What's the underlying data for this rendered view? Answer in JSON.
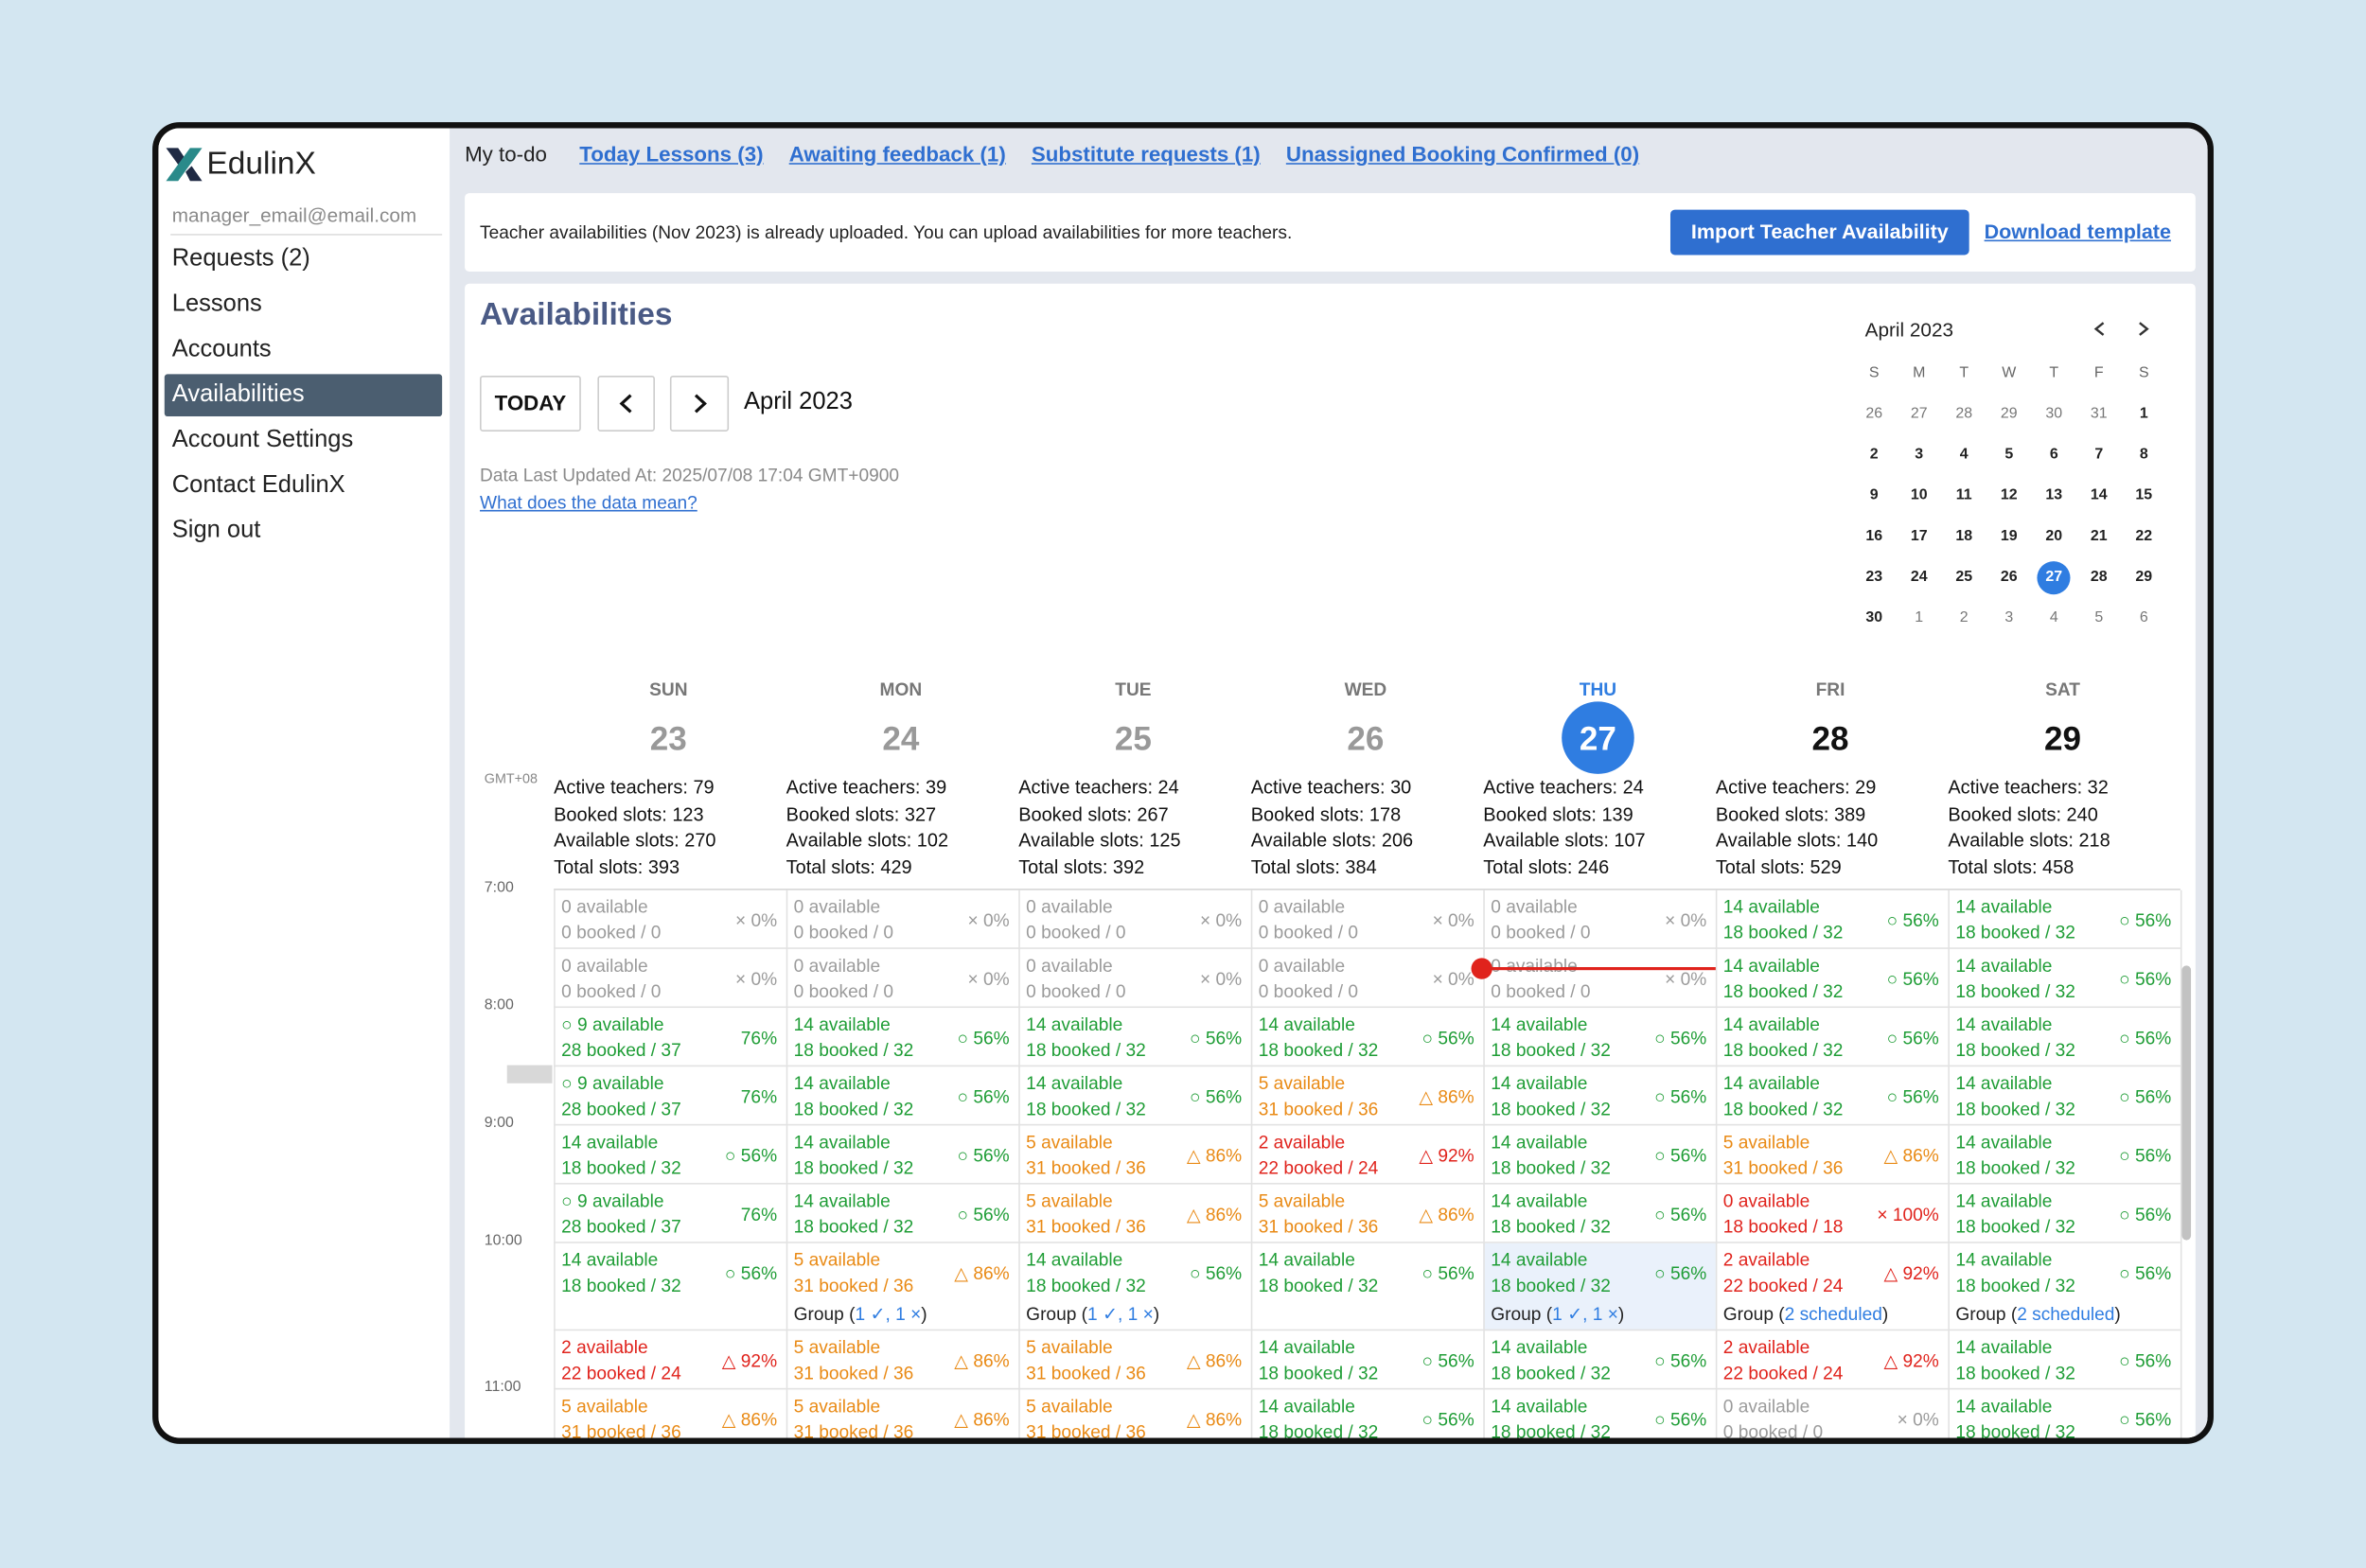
{
  "sidebar": {
    "logo": "EdulinX",
    "email": "manager_email@email.com",
    "menu": [
      "Requests (2)",
      "Lessons",
      "Accounts",
      "Availabilities",
      "Account Settings",
      "Contact EdulinX",
      "Sign out"
    ],
    "active": 3
  },
  "topbar": {
    "label": "My to-do",
    "links": [
      "Today Lessons (3)",
      "Awaiting feedback (1)",
      "Substitute requests (1)",
      "Unassigned Booking Confirmed (0)"
    ]
  },
  "banner": {
    "text": "Teacher availabilities (Nov 2023) is already uploaded. You can upload availabilities for more teachers.",
    "button": "Import Teacher Availability",
    "link": "Download template"
  },
  "header": {
    "title": "Availabilities",
    "today": "TODAY",
    "month": "April 2023",
    "updated": "Data Last Updated At: 2025/07/08 17:04 GMT+0900",
    "help": "What does the data mean?"
  },
  "mini_calendar": {
    "title": "April 2023",
    "weekdays": [
      "S",
      "M",
      "T",
      "W",
      "T",
      "F",
      "S"
    ],
    "weeks": [
      [
        "26",
        "27",
        "28",
        "29",
        "30",
        "31",
        "1"
      ],
      [
        "2",
        "3",
        "4",
        "5",
        "6",
        "7",
        "8"
      ],
      [
        "9",
        "10",
        "11",
        "12",
        "13",
        "14",
        "15"
      ],
      [
        "16",
        "17",
        "18",
        "19",
        "20",
        "21",
        "22"
      ],
      [
        "23",
        "24",
        "25",
        "26",
        "27",
        "28",
        "29"
      ],
      [
        "30",
        "1",
        "2",
        "3",
        "4",
        "5",
        "6"
      ]
    ],
    "selected": "27"
  },
  "week": {
    "timezone": "GMT+08",
    "days": [
      {
        "name": "SUN",
        "date": "23",
        "state": "past",
        "stats": [
          "Active teachers: 79",
          "Booked slots: 123",
          "Available slots: 270",
          "Total slots: 393"
        ]
      },
      {
        "name": "MON",
        "date": "24",
        "state": "past",
        "stats": [
          "Active teachers: 39",
          "Booked slots: 327",
          "Available slots: 102",
          "Total slots: 429"
        ]
      },
      {
        "name": "TUE",
        "date": "25",
        "state": "past",
        "stats": [
          "Active teachers: 24",
          "Booked slots: 267",
          "Available slots: 125",
          "Total slots: 392"
        ]
      },
      {
        "name": "WED",
        "date": "26",
        "state": "past",
        "stats": [
          "Active teachers: 30",
          "Booked slots: 178",
          "Available slots: 206",
          "Total slots: 384"
        ]
      },
      {
        "name": "THU",
        "date": "27",
        "state": "today",
        "stats": [
          "Active teachers: 24",
          "Booked slots: 139",
          "Available slots: 107",
          "Total slots: 246"
        ]
      },
      {
        "name": "FRI",
        "date": "28",
        "state": "future",
        "stats": [
          "Active teachers: 29",
          "Booked slots: 389",
          "Available slots: 140",
          "Total slots: 529"
        ]
      },
      {
        "name": "SAT",
        "date": "29",
        "state": "future",
        "stats": [
          "Active teachers: 32",
          "Booked slots: 240",
          "Available slots: 218",
          "Total slots: 458"
        ]
      }
    ],
    "rows": [
      {
        "time": "7:00",
        "cells": [
          {
            "a": "0 available",
            "b": "0 booked / 0",
            "r": "× 0%",
            "color": "#9b9b9b"
          },
          {
            "a": "0 available",
            "b": "0 booked / 0",
            "r": "× 0%",
            "color": "#9b9b9b"
          },
          {
            "a": "0 available",
            "b": "0 booked / 0",
            "r": "× 0%",
            "color": "#9b9b9b"
          },
          {
            "a": "0 available",
            "b": "0 booked / 0",
            "r": "× 0%",
            "color": "#9b9b9b"
          },
          {
            "a": "0 available",
            "b": "0 booked / 0",
            "r": "× 0%",
            "color": "#9b9b9b"
          },
          {
            "a": "14 available",
            "b": "18 booked / 32",
            "r": "○ 56%",
            "color": "#1f9d36"
          },
          {
            "a": "14 available",
            "b": "18 booked / 32",
            "r": "○ 56%",
            "color": "#1f9d36"
          }
        ]
      },
      {
        "time": null,
        "cells": [
          {
            "a": "0 available",
            "b": "0 booked / 0",
            "r": "× 0%",
            "color": "#9b9b9b"
          },
          {
            "a": "0 available",
            "b": "0 booked / 0",
            "r": "× 0%",
            "color": "#9b9b9b"
          },
          {
            "a": "0 available",
            "b": "0 booked / 0",
            "r": "× 0%",
            "color": "#9b9b9b"
          },
          {
            "a": "0 available",
            "b": "0 booked / 0",
            "r": "× 0%",
            "color": "#9b9b9b"
          },
          {
            "a": "0 available",
            "b": "0 booked / 0",
            "r": "× 0%",
            "color": "#9b9b9b"
          },
          {
            "a": "14 available",
            "b": "18 booked / 32",
            "r": "○ 56%",
            "color": "#1f9d36"
          },
          {
            "a": "14 available",
            "b": "18 booked / 32",
            "r": "○ 56%",
            "color": "#1f9d36"
          }
        ]
      },
      {
        "time": "8:00",
        "cells": [
          {
            "a": "○ 9 available",
            "b": "28 booked / 37",
            "r": "76%",
            "color": "#1f9d36"
          },
          {
            "a": "14 available",
            "b": "18 booked / 32",
            "r": "○ 56%",
            "color": "#1f9d36"
          },
          {
            "a": "14 available",
            "b": "18 booked / 32",
            "r": "○ 56%",
            "color": "#1f9d36"
          },
          {
            "a": "14 available",
            "b": "18 booked / 32",
            "r": "○ 56%",
            "color": "#1f9d36"
          },
          {
            "a": "14 available",
            "b": "18 booked / 32",
            "r": "○ 56%",
            "color": "#1f9d36"
          },
          {
            "a": "14 available",
            "b": "18 booked / 32",
            "r": "○ 56%",
            "color": "#1f9d36"
          },
          {
            "a": "14 available",
            "b": "18 booked / 32",
            "r": "○ 56%",
            "color": "#1f9d36"
          }
        ]
      },
      {
        "time": null,
        "cells": [
          {
            "a": "○ 9 available",
            "b": "28 booked / 37",
            "r": "76%",
            "color": "#1f9d36"
          },
          {
            "a": "14 available",
            "b": "18 booked / 32",
            "r": "○ 56%",
            "color": "#1f9d36"
          },
          {
            "a": "14 available",
            "b": "18 booked / 32",
            "r": "○ 56%",
            "color": "#1f9d36"
          },
          {
            "a": "5 available",
            "b": "31 booked / 36",
            "r": "△ 86%",
            "color": "#e98a15"
          },
          {
            "a": "14 available",
            "b": "18 booked / 32",
            "r": "○ 56%",
            "color": "#1f9d36"
          },
          {
            "a": "14 available",
            "b": "18 booked / 32",
            "r": "○ 56%",
            "color": "#1f9d36"
          },
          {
            "a": "14 available",
            "b": "18 booked / 32",
            "r": "○ 56%",
            "color": "#1f9d36"
          }
        ]
      },
      {
        "time": "9:00",
        "cells": [
          {
            "a": "14 available",
            "b": "18 booked / 32",
            "r": "○ 56%",
            "color": "#1f9d36"
          },
          {
            "a": "14 available",
            "b": "18 booked / 32",
            "r": "○ 56%",
            "color": "#1f9d36"
          },
          {
            "a": "5 available",
            "b": "31 booked / 36",
            "r": "△ 86%",
            "color": "#e98a15"
          },
          {
            "a": "2 available",
            "b": "22 booked / 24",
            "r": "△ 92%",
            "color": "#e0231c"
          },
          {
            "a": "14 available",
            "b": "18 booked / 32",
            "r": "○ 56%",
            "color": "#1f9d36"
          },
          {
            "a": "5 available",
            "b": "31 booked / 36",
            "r": "△ 86%",
            "color": "#e98a15"
          },
          {
            "a": "14 available",
            "b": "18 booked / 32",
            "r": "○ 56%",
            "color": "#1f9d36"
          }
        ]
      },
      {
        "time": null,
        "cells": [
          {
            "a": "○ 9 available",
            "b": "28 booked / 37",
            "r": "76%",
            "color": "#1f9d36"
          },
          {
            "a": "14 available",
            "b": "18 booked / 32",
            "r": "○ 56%",
            "color": "#1f9d36"
          },
          {
            "a": "5 available",
            "b": "31 booked / 36",
            "r": "△ 86%",
            "color": "#e98a15"
          },
          {
            "a": "5 available",
            "b": "31 booked / 36",
            "r": "△ 86%",
            "color": "#e98a15"
          },
          {
            "a": "14 available",
            "b": "18 booked / 32",
            "r": "○ 56%",
            "color": "#1f9d36"
          },
          {
            "a": "0 available",
            "b": "18 booked / 18",
            "r": "× 100%",
            "color": "#e0231c"
          },
          {
            "a": "14 available",
            "b": "18 booked / 32",
            "r": "○ 56%",
            "color": "#1f9d36"
          }
        ]
      },
      {
        "time": "10:00",
        "cells": [
          {
            "a": "14 available",
            "b": "18 booked / 32",
            "r": "○ 56%",
            "color": "#1f9d36"
          },
          {
            "a": "5 available",
            "b": "31 booked / 36",
            "r": "△ 86%",
            "color": "#e98a15",
            "group": [
              "Group (",
              "1 ✓, 1 ×",
              ")"
            ]
          },
          {
            "a": "14 available",
            "b": "18 booked / 32",
            "r": "○ 56%",
            "color": "#1f9d36",
            "group": [
              "Group (",
              "1 ✓, 1 ×",
              ")"
            ]
          },
          {
            "a": "14 available",
            "b": "18 booked / 32",
            "r": "○ 56%",
            "color": "#1f9d36"
          },
          {
            "a": "14 available",
            "b": "18 booked / 32",
            "r": "○ 56%",
            "color": "#1f9d36",
            "group": [
              "Group (",
              "1 ✓, 1 ×",
              ")"
            ],
            "hover": true
          },
          {
            "a": "2 available",
            "b": "22 booked / 24",
            "r": "△ 92%",
            "color": "#e0231c",
            "group": [
              "Group (",
              "2 scheduled",
              ")"
            ]
          },
          {
            "a": "14 available",
            "b": "18 booked / 32",
            "r": "○ 56%",
            "color": "#1f9d36",
            "group": [
              "Group (",
              "2 scheduled",
              ")"
            ]
          }
        ]
      },
      {
        "time": null,
        "cells": [
          {
            "a": "2 available",
            "b": "22 booked / 24",
            "r": "△ 92%",
            "color": "#e0231c"
          },
          {
            "a": "5 available",
            "b": "31 booked / 36",
            "r": "△ 86%",
            "color": "#e98a15"
          },
          {
            "a": "5 available",
            "b": "31 booked / 36",
            "r": "△ 86%",
            "color": "#e98a15"
          },
          {
            "a": "14 available",
            "b": "18 booked / 32",
            "r": "○ 56%",
            "color": "#1f9d36"
          },
          {
            "a": "14 available",
            "b": "18 booked / 32",
            "r": "○ 56%",
            "color": "#1f9d36"
          },
          {
            "a": "2 available",
            "b": "22 booked / 24",
            "r": "△ 92%",
            "color": "#e0231c"
          },
          {
            "a": "14 available",
            "b": "18 booked / 32",
            "r": "○ 56%",
            "color": "#1f9d36"
          }
        ]
      },
      {
        "time": "11:00",
        "cells": [
          {
            "a": "5 available",
            "b": "31 booked / 36",
            "r": "△ 86%",
            "color": "#e98a15"
          },
          {
            "a": "5 available",
            "b": "31 booked / 36",
            "r": "△ 86%",
            "color": "#e98a15"
          },
          {
            "a": "5 available",
            "b": "31 booked / 36",
            "r": "△ 86%",
            "color": "#e98a15"
          },
          {
            "a": "14 available",
            "b": "18 booked / 32",
            "r": "○ 56%",
            "color": "#1f9d36"
          },
          {
            "a": "14 available",
            "b": "18 booked / 32",
            "r": "○ 56%",
            "color": "#1f9d36"
          },
          {
            "a": "0 available",
            "b": "0 booked / 0",
            "r": "× 0%",
            "color": "#9b9b9b"
          },
          {
            "a": "14 available",
            "b": "18 booked / 32",
            "r": "○ 56%",
            "color": "#1f9d36"
          }
        ]
      }
    ]
  }
}
